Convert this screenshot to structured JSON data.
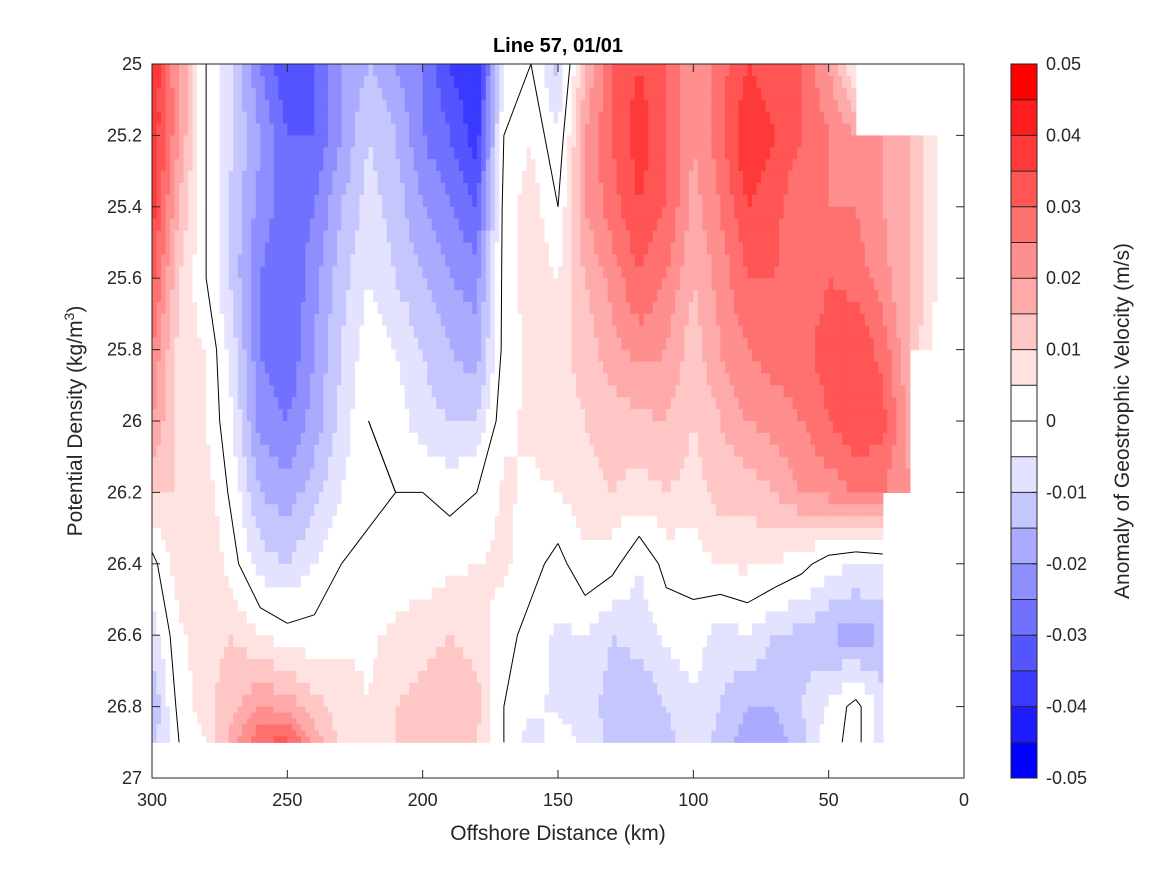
{
  "chart_data": {
    "type": "heatmap",
    "title": "Line 57, 01/01",
    "xlabel": "Offshore Distance (km)",
    "ylabel": "Potential Density (kg/m",
    "ylabel_sup": "3",
    "ylabel_end": ")",
    "colorbar_label": "Anomaly of Geostrophic Velocity (m/s)",
    "xlim": [
      300,
      0
    ],
    "ylim": [
      25,
      27
    ],
    "x_reversed": true,
    "y_reversed": true,
    "x_ticks": [
      "300",
      "250",
      "200",
      "150",
      "100",
      "50",
      "0"
    ],
    "y_ticks": [
      "25",
      "25.2",
      "25.4",
      "25.6",
      "25.8",
      "26",
      "26.2",
      "26.4",
      "26.6",
      "26.8",
      "27"
    ],
    "colorbar_ticks": [
      "0.05",
      "0.04",
      "0.03",
      "0.02",
      "0.01",
      "0",
      "-0.01",
      "-0.02",
      "-0.03",
      "-0.04",
      "-0.05"
    ],
    "clim": [
      -0.05,
      0.05
    ],
    "contour_levels": 20,
    "zero_contour_color": "#000000",
    "colormap_endpoints": {
      "negative": "#0000ff",
      "zero": "#ffffff",
      "positive": "#ff0000"
    },
    "x_nodes": [
      300,
      290,
      280,
      270,
      260,
      250,
      240,
      230,
      220,
      210,
      200,
      190,
      180,
      170,
      160,
      150,
      140,
      130,
      120,
      110,
      100,
      90,
      80,
      70,
      60,
      50,
      40,
      30,
      20,
      10,
      0
    ],
    "y_nodes": [
      25.0,
      25.2,
      25.4,
      25.6,
      25.8,
      26.0,
      26.2,
      26.4,
      26.6,
      26.8,
      26.9
    ],
    "values": [
      [
        0.04,
        0.02,
        0.0,
        -0.01,
        -0.025,
        -0.035,
        -0.03,
        -0.02,
        -0.015,
        -0.02,
        -0.025,
        -0.035,
        -0.04,
        -0.005,
        0.0,
        -0.012,
        0.015,
        0.03,
        0.035,
        0.03,
        0.02,
        0.028,
        0.035,
        0.032,
        0.03,
        0.02,
        0.005,
        null,
        null,
        null,
        null
      ],
      [
        0.04,
        0.02,
        0.0,
        -0.01,
        -0.02,
        -0.03,
        -0.03,
        -0.02,
        -0.01,
        -0.015,
        -0.025,
        -0.03,
        -0.038,
        0.0,
        0.005,
        -0.005,
        0.02,
        0.03,
        0.038,
        0.03,
        0.02,
        0.028,
        0.04,
        0.035,
        0.03,
        0.025,
        0.02,
        0.02,
        0.015,
        0.005,
        -0.01
      ],
      [
        0.038,
        0.015,
        0.0,
        -0.012,
        -0.022,
        -0.028,
        -0.025,
        -0.015,
        -0.008,
        -0.012,
        -0.02,
        -0.025,
        -0.03,
        0.002,
        0.008,
        0.0,
        0.02,
        0.028,
        0.035,
        0.03,
        0.018,
        0.025,
        0.035,
        0.032,
        0.025,
        0.025,
        0.025,
        0.02,
        0.015,
        0.005,
        null
      ],
      [
        0.032,
        0.01,
        0.0,
        -0.012,
        -0.025,
        -0.03,
        -0.022,
        -0.012,
        -0.005,
        -0.01,
        -0.015,
        -0.02,
        -0.022,
        0.002,
        0.008,
        0.005,
        0.015,
        0.022,
        0.03,
        0.025,
        0.015,
        0.022,
        0.03,
        0.03,
        0.025,
        0.03,
        0.028,
        0.022,
        0.015,
        0.005,
        null
      ],
      [
        0.025,
        0.008,
        0.005,
        -0.008,
        -0.025,
        -0.03,
        -0.02,
        -0.01,
        -0.002,
        -0.005,
        -0.01,
        -0.015,
        -0.018,
        0.002,
        0.006,
        0.008,
        0.012,
        0.018,
        0.022,
        0.02,
        0.012,
        0.02,
        0.025,
        0.028,
        0.028,
        0.033,
        0.035,
        0.028,
        0.015,
        0.002,
        null
      ],
      [
        0.02,
        0.008,
        0.005,
        -0.005,
        -0.022,
        -0.025,
        -0.018,
        -0.008,
        0.0,
        -0.002,
        -0.008,
        -0.01,
        -0.01,
        0.004,
        0.006,
        0.008,
        0.01,
        0.012,
        0.014,
        0.015,
        0.01,
        0.015,
        0.02,
        0.022,
        0.025,
        0.03,
        0.035,
        0.032,
        0.018,
        null,
        null
      ],
      [
        0.01,
        0.01,
        0.008,
        -0.002,
        -0.015,
        -0.018,
        -0.012,
        -0.005,
        -0.002,
        0.0,
        0.0,
        -0.002,
        0.0,
        0.006,
        0.004,
        0.005,
        0.008,
        0.01,
        0.008,
        0.01,
        0.008,
        0.012,
        0.012,
        0.015,
        0.02,
        0.022,
        0.025,
        0.025,
        0.02,
        null,
        null
      ],
      [
        -0.002,
        0.008,
        0.01,
        0.002,
        -0.008,
        -0.01,
        -0.005,
        0.0,
        0.002,
        0.002,
        0.002,
        0.004,
        0.005,
        0.006,
        0.002,
        -0.002,
        0.004,
        0.002,
        -0.005,
        0.002,
        0.002,
        0.006,
        0.006,
        0.005,
        0.002,
        -0.003,
        -0.005,
        -0.004,
        null,
        null,
        null
      ],
      [
        -0.008,
        0.004,
        0.008,
        0.01,
        0.005,
        0.002,
        0.002,
        0.004,
        0.004,
        0.006,
        0.008,
        0.01,
        0.008,
        0.002,
        -0.002,
        -0.006,
        -0.005,
        -0.01,
        -0.008,
        -0.004,
        -0.002,
        -0.008,
        -0.005,
        -0.01,
        -0.012,
        -0.015,
        -0.018,
        -0.015,
        null,
        null,
        null
      ],
      [
        -0.015,
        0.002,
        0.008,
        0.014,
        0.02,
        0.018,
        0.012,
        0.008,
        0.005,
        0.01,
        0.012,
        0.014,
        0.012,
        0.0,
        -0.004,
        -0.006,
        -0.008,
        -0.012,
        -0.015,
        -0.01,
        -0.006,
        -0.01,
        -0.015,
        -0.015,
        -0.01,
        -0.004,
        0.002,
        -0.008,
        null,
        null,
        null
      ],
      [
        -0.012,
        0.0,
        0.005,
        0.018,
        0.03,
        0.032,
        0.018,
        0.008,
        0.006,
        0.01,
        0.01,
        0.012,
        0.01,
        0.0,
        -0.008,
        -0.002,
        -0.006,
        -0.012,
        -0.014,
        -0.012,
        -0.006,
        -0.012,
        -0.018,
        -0.018,
        -0.012,
        -0.002,
        0.002,
        -0.008,
        null,
        null,
        null
      ]
    ]
  }
}
